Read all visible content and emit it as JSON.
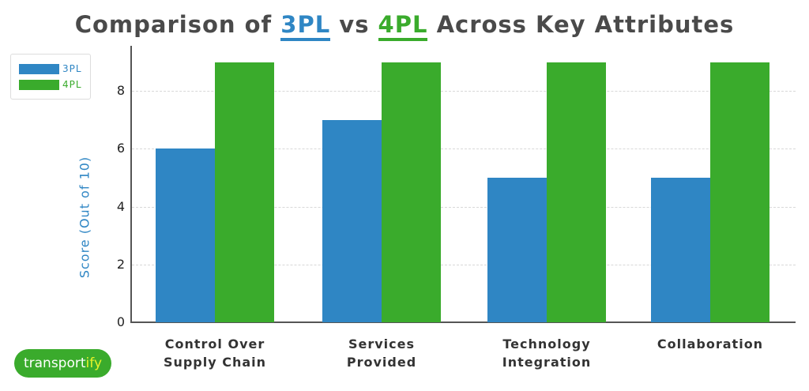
{
  "title": {
    "prefix": "Comparison of ",
    "a": "3PL",
    "mid": " vs ",
    "b": "4PL",
    "suffix": " Across Key Attributes"
  },
  "colors": {
    "3PL": "#2f86c4",
    "4PL": "#3aab2c"
  },
  "legend": [
    {
      "label": "3PL",
      "color": "#2f86c4"
    },
    {
      "label": "4PL",
      "color": "#3aab2c"
    }
  ],
  "logo": {
    "main": "transport",
    "accent": "ify"
  },
  "chart_data": {
    "type": "bar",
    "title": "Comparison of 3PL vs 4PL Across Key Attributes",
    "xlabel": "",
    "ylabel": "Score (Out of 10)",
    "categories": [
      "Control Over Supply Chain",
      "Services Provided",
      "Technology Integration",
      "Collaboration"
    ],
    "category_lines": [
      [
        "Control Over",
        "Supply Chain"
      ],
      [
        "Services",
        "Provided"
      ],
      [
        "Technology",
        "Integration"
      ],
      [
        "Collaboration",
        ""
      ]
    ],
    "series": [
      {
        "name": "3PL",
        "values": [
          6,
          7,
          5,
          5
        ],
        "color": "#2f86c4"
      },
      {
        "name": "4PL",
        "values": [
          9,
          9,
          9,
          9
        ],
        "color": "#3aab2c"
      }
    ],
    "yticks": [
      0,
      2,
      4,
      6,
      8
    ],
    "ylim": [
      0,
      9.5
    ],
    "grid": true,
    "legend_position": "upper left"
  }
}
